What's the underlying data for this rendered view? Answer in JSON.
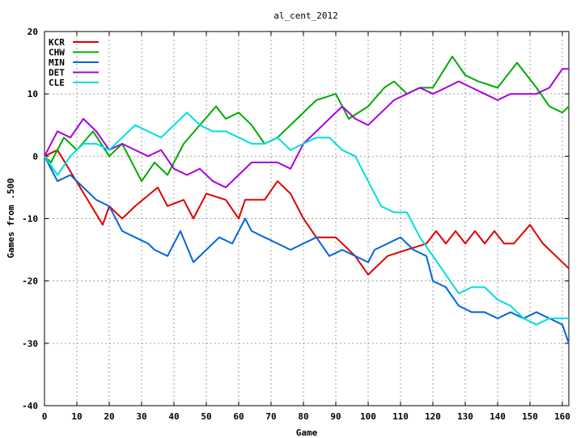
{
  "chart_data": {
    "type": "line",
    "title": "al_cent_2012",
    "xlabel": "Game",
    "ylabel": "Games from .500",
    "xlim": [
      0,
      162
    ],
    "ylim": [
      -40,
      20
    ],
    "xticks": [
      "0",
      "10",
      "20",
      "30",
      "40",
      "50",
      "60",
      "70",
      "80",
      "90",
      "100",
      "110",
      "120",
      "130",
      "140",
      "150",
      "160"
    ],
    "yticks": [
      "20",
      "10",
      "0",
      "-10",
      "-20",
      "-30",
      "-40"
    ],
    "grid": true,
    "legend_position": "top-left",
    "series": [
      {
        "name": "KCR",
        "color": "#dd0000",
        "x": [
          0,
          4,
          18,
          20,
          24,
          28,
          35,
          38,
          43,
          46,
          50,
          56,
          60,
          62,
          68,
          72,
          76,
          80,
          84,
          90,
          96,
          100,
          106,
          112,
          118,
          121,
          124,
          127,
          130,
          133,
          136,
          139,
          142,
          145,
          150,
          154,
          158,
          162
        ],
        "y": [
          0,
          1,
          -11,
          -8,
          -10,
          -8,
          -5,
          -8,
          -7,
          -10,
          -6,
          -7,
          -10,
          -7,
          -7,
          -4,
          -6,
          -10,
          -13,
          -13,
          -16,
          -19,
          -16,
          -15,
          -14,
          -12,
          -14,
          -12,
          -14,
          -12,
          -14,
          -12,
          -14,
          -14,
          -11,
          -14,
          -16,
          -18
        ]
      },
      {
        "name": "CHW",
        "color": "#00aa00",
        "x": [
          0,
          2,
          6,
          10,
          15,
          20,
          24,
          30,
          34,
          38,
          40,
          43,
          53,
          56,
          60,
          64,
          68,
          72,
          78,
          84,
          90,
          94,
          100,
          105,
          108,
          112,
          116,
          120,
          126,
          130,
          134,
          140,
          146,
          152,
          156,
          160,
          162
        ],
        "y": [
          0,
          -1,
          3,
          1,
          4,
          0,
          2,
          -4,
          -1,
          -3,
          -1,
          2,
          8,
          6,
          7,
          5,
          2,
          3,
          6,
          9,
          10,
          6,
          8,
          11,
          12,
          10,
          11,
          11,
          16,
          13,
          12,
          11,
          15,
          11,
          8,
          7,
          8
        ]
      },
      {
        "name": "MIN",
        "color": "#0066dd",
        "x": [
          0,
          4,
          8,
          12,
          16,
          20,
          24,
          28,
          32,
          34,
          38,
          42,
          46,
          50,
          54,
          58,
          62,
          64,
          68,
          72,
          76,
          80,
          84,
          88,
          92,
          96,
          100,
          102,
          106,
          110,
          114,
          118,
          120,
          124,
          128,
          132,
          136,
          140,
          144,
          148,
          152,
          156,
          160,
          162
        ],
        "y": [
          0,
          -4,
          -3,
          -5,
          -7,
          -8,
          -12,
          -13,
          -14,
          -15,
          -16,
          -12,
          -17,
          -15,
          -13,
          -14,
          -10,
          -12,
          -13,
          -14,
          -15,
          -14,
          -13,
          -16,
          -15,
          -16,
          -17,
          -15,
          -14,
          -13,
          -15,
          -16,
          -20,
          -21,
          -24,
          -25,
          -25,
          -26,
          -25,
          -26,
          -25,
          -26,
          -27,
          -30
        ]
      },
      {
        "name": "DET",
        "color": "#aa00dd",
        "x": [
          0,
          2,
          4,
          8,
          12,
          16,
          20,
          24,
          28,
          32,
          36,
          40,
          44,
          48,
          52,
          56,
          60,
          64,
          68,
          72,
          76,
          80,
          84,
          88,
          92,
          96,
          100,
          104,
          108,
          112,
          116,
          120,
          124,
          128,
          132,
          136,
          140,
          144,
          148,
          152,
          156,
          160,
          162
        ],
        "y": [
          0,
          2,
          4,
          3,
          6,
          4,
          1,
          2,
          1,
          0,
          1,
          -2,
          -3,
          -2,
          -4,
          -5,
          -3,
          -1,
          -1,
          -1,
          -2,
          2,
          4,
          6,
          8,
          6,
          5,
          7,
          9,
          10,
          11,
          10,
          11,
          12,
          11,
          10,
          9,
          10,
          10,
          10,
          11,
          14,
          14
        ]
      },
      {
        "name": "CLE",
        "color": "#00dddd",
        "x": [
          0,
          4,
          8,
          12,
          16,
          20,
          24,
          28,
          32,
          36,
          40,
          44,
          48,
          52,
          56,
          60,
          64,
          68,
          72,
          76,
          80,
          84,
          88,
          92,
          96,
          100,
          104,
          108,
          112,
          116,
          120,
          124,
          128,
          132,
          136,
          140,
          144,
          148,
          152,
          156,
          160,
          162
        ],
        "y": [
          0,
          -3,
          0,
          2,
          2,
          1,
          3,
          5,
          4,
          3,
          5,
          7,
          5,
          4,
          4,
          3,
          2,
          2,
          3,
          1,
          2,
          3,
          3,
          1,
          0,
          -4,
          -8,
          -9,
          -9,
          -13,
          -16,
          -19,
          -22,
          -21,
          -21,
          -23,
          -24,
          -26,
          -27,
          -26,
          -26,
          -26
        ]
      }
    ]
  }
}
